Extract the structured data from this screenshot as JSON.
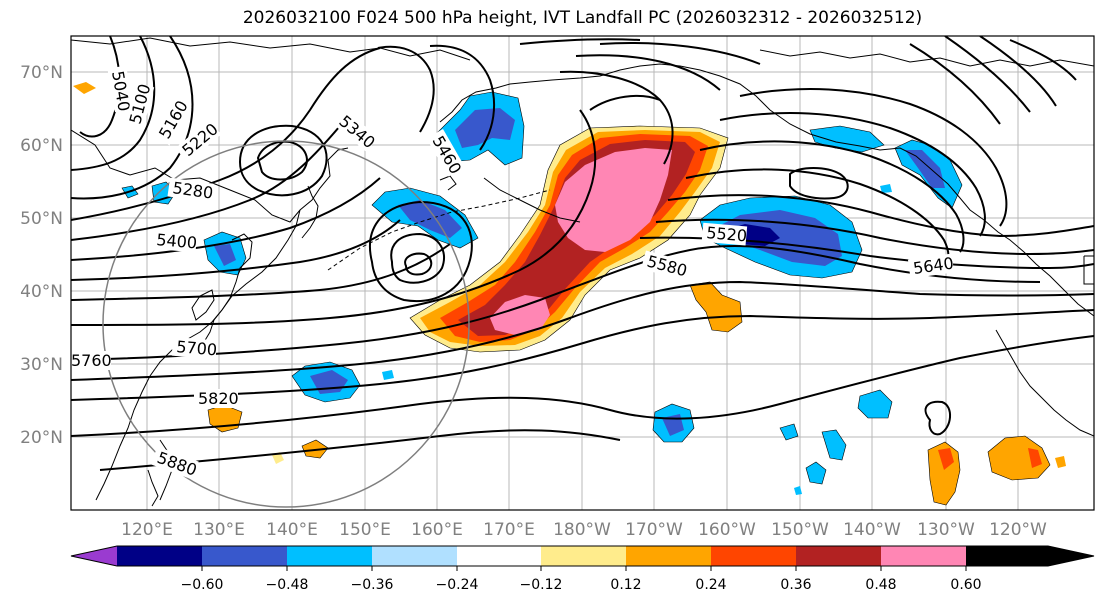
{
  "title": "2026032100 F024 500 hPa height, IVT Landfall PC (2026032312 - 2026032512)",
  "lat_labels": [
    "70°N",
    "60°N",
    "50°N",
    "40°N",
    "30°N",
    "20°N"
  ],
  "lon_labels": [
    "120°E",
    "130°E",
    "140°E",
    "150°E",
    "160°E",
    "170°E",
    "180°W",
    "170°W",
    "160°W",
    "150°W",
    "140°W",
    "130°W",
    "120°W"
  ],
  "contour_labels": [
    "5040",
    "5100",
    "5160",
    "5220",
    "5280",
    "5340",
    "5400",
    "5460",
    "5520",
    "5580",
    "5640",
    "5700",
    "5760",
    "5820",
    "5880"
  ],
  "colorbar": {
    "ticks": [
      "−0.60",
      "−0.48",
      "−0.36",
      "−0.24",
      "−0.12",
      "0.12",
      "0.24",
      "0.36",
      "0.48",
      "0.60"
    ],
    "colors": [
      "#9a3bd0",
      "#000086",
      "#3858cc",
      "#00bfff",
      "#b0e0ff",
      "#ffffff",
      "#ffec8c",
      "#ffa500",
      "#ff4500",
      "#b22222",
      "#ff86b4"
    ]
  }
}
